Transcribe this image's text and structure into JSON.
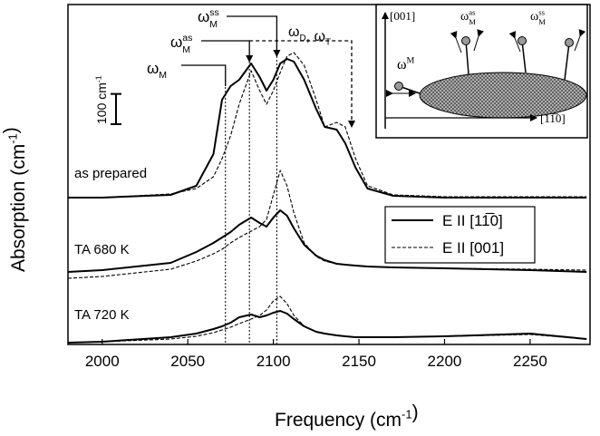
{
  "chart_data": {
    "type": "line",
    "x_label": {
      "text": "Frequency (cm",
      "sup": "-1",
      "tail": ")"
    },
    "y_label": {
      "text": "Absorption (cm",
      "sup": "-1",
      "tail": ")"
    },
    "x": [
      1980,
      2000,
      2040,
      2055,
      2065,
      2070,
      2075,
      2080,
      2087,
      2092,
      2096,
      2100,
      2104,
      2108,
      2112,
      2118,
      2125,
      2130,
      2137,
      2142,
      2148,
      2155,
      2170,
      2200,
      2250,
      2283
    ],
    "xlim": [
      1980,
      2285
    ],
    "xticks": [
      2000,
      2050,
      2100,
      2150,
      2200,
      2250
    ],
    "ylim": [
      0,
      1125
    ],
    "samples": [
      "as prepared",
      "TA 680 K",
      "TA 720 K"
    ],
    "series": [
      {
        "name": "E II [11̅0]",
        "color": "#000000",
        "style": "solid",
        "values": [
          [
            486,
            486,
            495,
            525,
            630,
            810,
            855,
            876,
            930,
            885,
            840,
            876,
            930,
            945,
            936,
            876,
            780,
            720,
            711,
            666,
            585,
            516,
            492,
            486,
            486,
            486
          ],
          [
            240,
            246,
            270,
            306,
            336,
            354,
            372,
            396,
            420,
            402,
            390,
            420,
            444,
            426,
            384,
            330,
            294,
            279,
            267,
            264,
            261,
            258,
            255,
            252,
            246,
            240
          ],
          [
            6,
            9,
            24,
            36,
            51,
            60,
            72,
            90,
            99,
            90,
            96,
            105,
            111,
            102,
            84,
            60,
            42,
            36,
            30,
            27,
            24,
            24,
            24,
            27,
            36,
            18
          ]
        ]
      },
      {
        "name": "E II [001]",
        "color": "#000000",
        "style": "dashed",
        "values": [
          [
            486,
            486,
            498,
            516,
            555,
            615,
            690,
            795,
            906,
            840,
            795,
            840,
            900,
            954,
            966,
            924,
            810,
            720,
            735,
            720,
            615,
            525,
            495,
            489,
            489,
            489
          ],
          [
            219,
            225,
            249,
            276,
            300,
            315,
            336,
            354,
            375,
            390,
            414,
            495,
            576,
            525,
            435,
            336,
            291,
            276,
            267,
            264,
            261,
            258,
            255,
            252,
            249,
            246
          ],
          [
            6,
            9,
            18,
            27,
            39,
            48,
            57,
            69,
            84,
            96,
            114,
            144,
            159,
            135,
            96,
            60,
            42,
            36,
            30,
            27,
            24,
            24,
            24,
            27,
            33,
            18
          ]
        ]
      }
    ],
    "vlines": [
      2072,
      2086,
      2102
    ],
    "scale_bar": {
      "value": 100,
      "text": "100 cm",
      "sup": "-1"
    },
    "modes": [
      {
        "text": "ω",
        "sub": "M"
      },
      {
        "text": "ω",
        "sub": "M",
        "sup": "as"
      },
      {
        "text": "ω",
        "sub": "M",
        "sup": "ss"
      },
      {
        "text": "ω",
        "sub": "D",
        "mid": ", ω",
        "sub2": "T"
      }
    ],
    "inset": {
      "y_axis": "[001]",
      "x_axis": "[11̅0]",
      "labels": [
        {
          "text": "ω",
          "sup": "M"
        },
        {
          "text": "ω",
          "sub": "M",
          "sup": "as"
        },
        {
          "text": "ω",
          "sub": "M",
          "sup": "ss"
        }
      ]
    }
  }
}
